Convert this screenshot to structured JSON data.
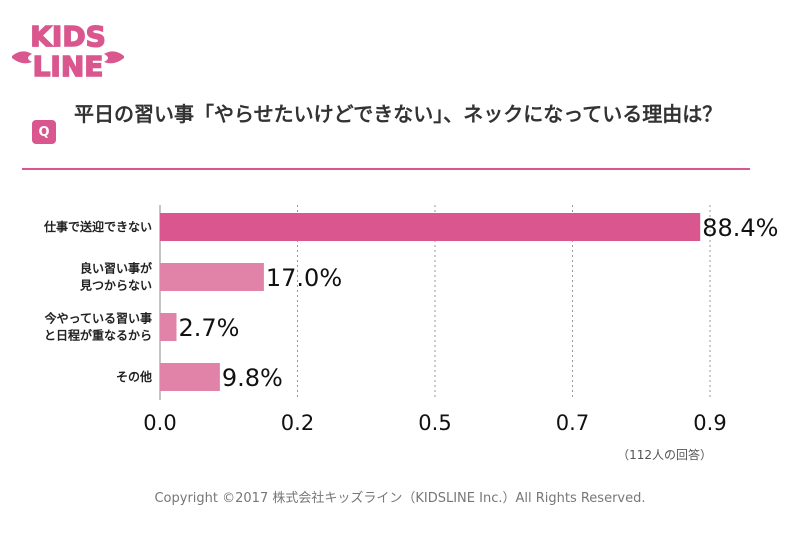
{
  "brand": {
    "logo_line1": "KIDS",
    "logo_line2": "LINE",
    "accent": "#d9578e",
    "bar_primary": "#d9578e",
    "bar_secondary": "#e183a9"
  },
  "question": {
    "badge": "Q",
    "text": "平日の習い事「やらせたいけどできない」、ネックになっている理由は？"
  },
  "chart_data": {
    "type": "bar",
    "orientation": "horizontal",
    "categories": [
      [
        "仕事で送迎できない"
      ],
      [
        "良い習い事が",
        "見つからない"
      ],
      [
        "今やっている習い事",
        "と日程が重なるから"
      ],
      [
        "その他"
      ]
    ],
    "values": [
      0.884,
      0.17,
      0.027,
      0.098
    ],
    "value_labels": [
      "88.4%",
      "17.0%",
      "2.7%",
      "9.8%"
    ],
    "xticks": [
      0.0,
      0.225,
      0.45,
      0.675,
      0.9
    ],
    "xtick_labels": [
      "0.0",
      "0.2",
      "0.5",
      "0.7",
      "0.9"
    ],
    "xlim": [
      0,
      0.9
    ],
    "grid": "vertical-dotted"
  },
  "sample_note": "（112人の回答）",
  "footer": {
    "copyright": "Copyright ©2017 株式会社キッズライン（KIDSLINE Inc.）All Rights Reserved."
  }
}
